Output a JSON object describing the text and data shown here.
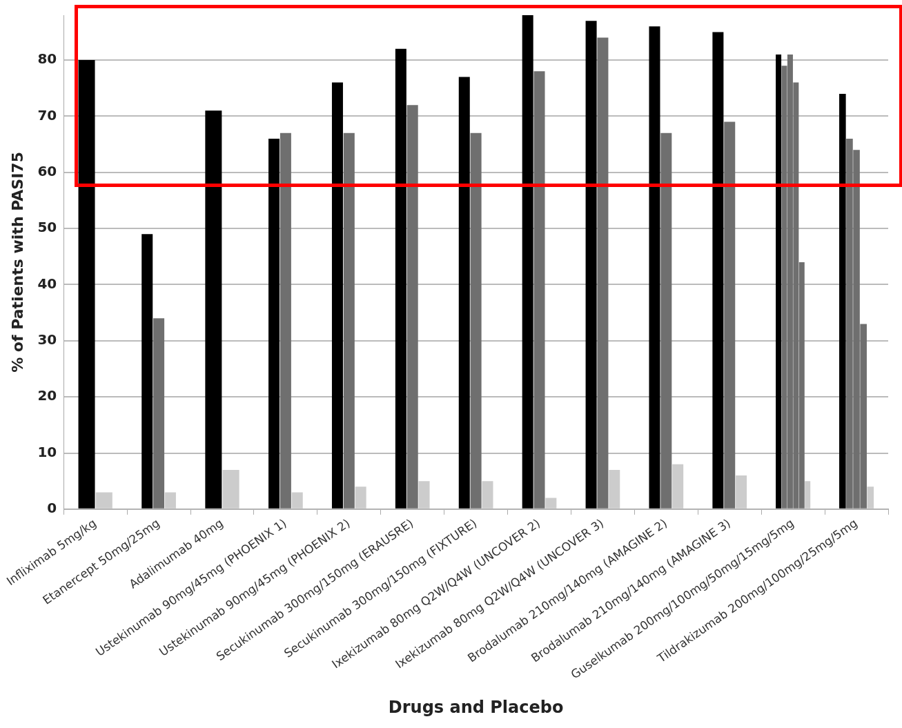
{
  "chart_data": {
    "type": "bar",
    "xlabel": "Drugs and Placebo",
    "ylabel": "% of Patients with PASI75",
    "categories": [
      "Infliximab 5mg/kg",
      "Etanercept 50mg/25mg",
      "Adalimumab 40mg",
      "Ustekinumab 90mg/45mg (PHOENIX 1)",
      "Ustekinumab 90mg/45mg (PHOENIX 2)",
      "Secukinumab 300mg/150mg (ERAUSRE)",
      "Secukinumab 300mg/150mg (FIXTURE)",
      "Ixekizumab 80mg Q2W/Q4W (UNCOVER 2)",
      "Ixekizumab 80mg Q2W/Q4W (UNCOVER 3)",
      "Brodalumab 210mg/140mg (AMAGINE 2)",
      "Brodalumab 210mg/140mg (AMAGINE 3)",
      "Guselkumab 200mg/100mg/50mg/15mg/5mg",
      "Tildrakizumab 200mg/100mg/25mg/5mg"
    ],
    "series": [
      {
        "color": "#000000",
        "values": [
          80,
          49,
          71,
          66,
          76,
          82,
          77,
          88,
          87,
          86,
          85,
          81,
          74
        ]
      },
      {
        "color": "#6f6f6f",
        "values": [
          null,
          34,
          null,
          67,
          67,
          72,
          67,
          78,
          84,
          67,
          69,
          79,
          66
        ]
      },
      {
        "color": "#6f6f6f",
        "values": [
          null,
          null,
          null,
          null,
          null,
          null,
          null,
          null,
          null,
          null,
          null,
          81,
          64
        ]
      },
      {
        "color": "#6f6f6f",
        "values": [
          null,
          null,
          null,
          null,
          null,
          null,
          null,
          null,
          null,
          null,
          null,
          76,
          33
        ]
      },
      {
        "color": "#6f6f6f",
        "values": [
          null,
          null,
          null,
          null,
          null,
          null,
          null,
          null,
          null,
          null,
          null,
          44,
          null
        ]
      },
      {
        "color": "#cccccc",
        "values": [
          3,
          3,
          7,
          3,
          4,
          5,
          5,
          2,
          7,
          8,
          6,
          5,
          4
        ]
      }
    ],
    "ylim": [
      0,
      88
    ],
    "yticks": [
      0,
      10,
      20,
      30,
      40,
      50,
      60,
      70,
      80
    ],
    "grid": "y",
    "legend": false
  }
}
